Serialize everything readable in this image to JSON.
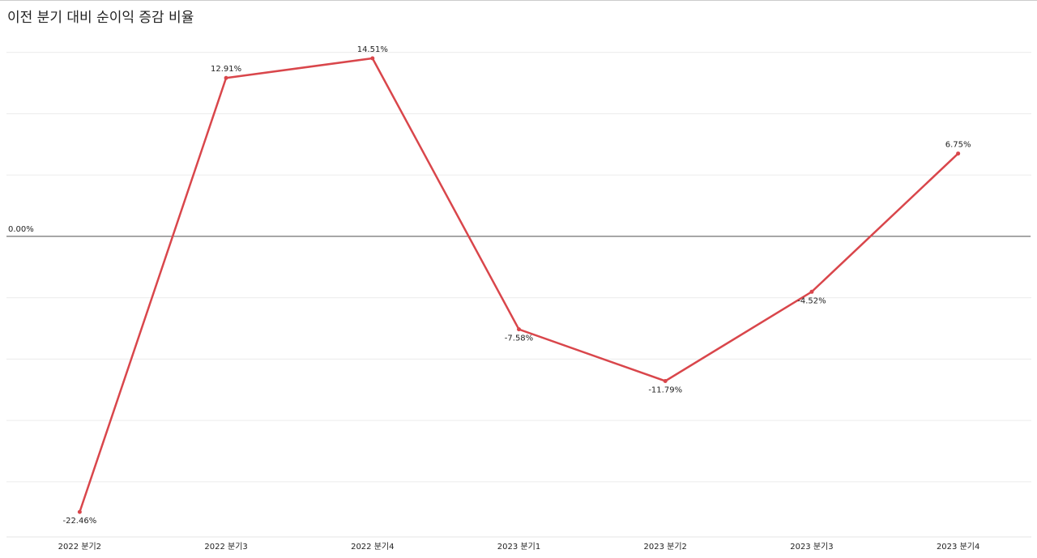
{
  "chart_data": {
    "type": "line",
    "title": "이전 분기 대비 순이익 증감 비율",
    "categories": [
      "2022 분기2",
      "2022 분기3",
      "2022 분기4",
      "2023 분기1",
      "2023 분기2",
      "2023 분기3",
      "2023 분기4"
    ],
    "series": [
      {
        "name": "순이익 증감 비율",
        "color": "#d9464b",
        "values": [
          -22.46,
          12.91,
          14.51,
          -7.58,
          -11.79,
          -4.52,
          6.75
        ],
        "value_labels": [
          "-22.46%",
          "12.91%",
          "14.51%",
          "-7.58%",
          "-11.79%",
          "-4.52%",
          "6.75%"
        ]
      }
    ],
    "ylim": [
      -24.5,
      15.5
    ],
    "yticks": [
      -20,
      -15,
      -10,
      -5,
      0,
      5,
      10,
      15
    ],
    "ytick_labels": false,
    "grid": true,
    "reference_line": {
      "value": 0,
      "label": "0.00%"
    }
  }
}
